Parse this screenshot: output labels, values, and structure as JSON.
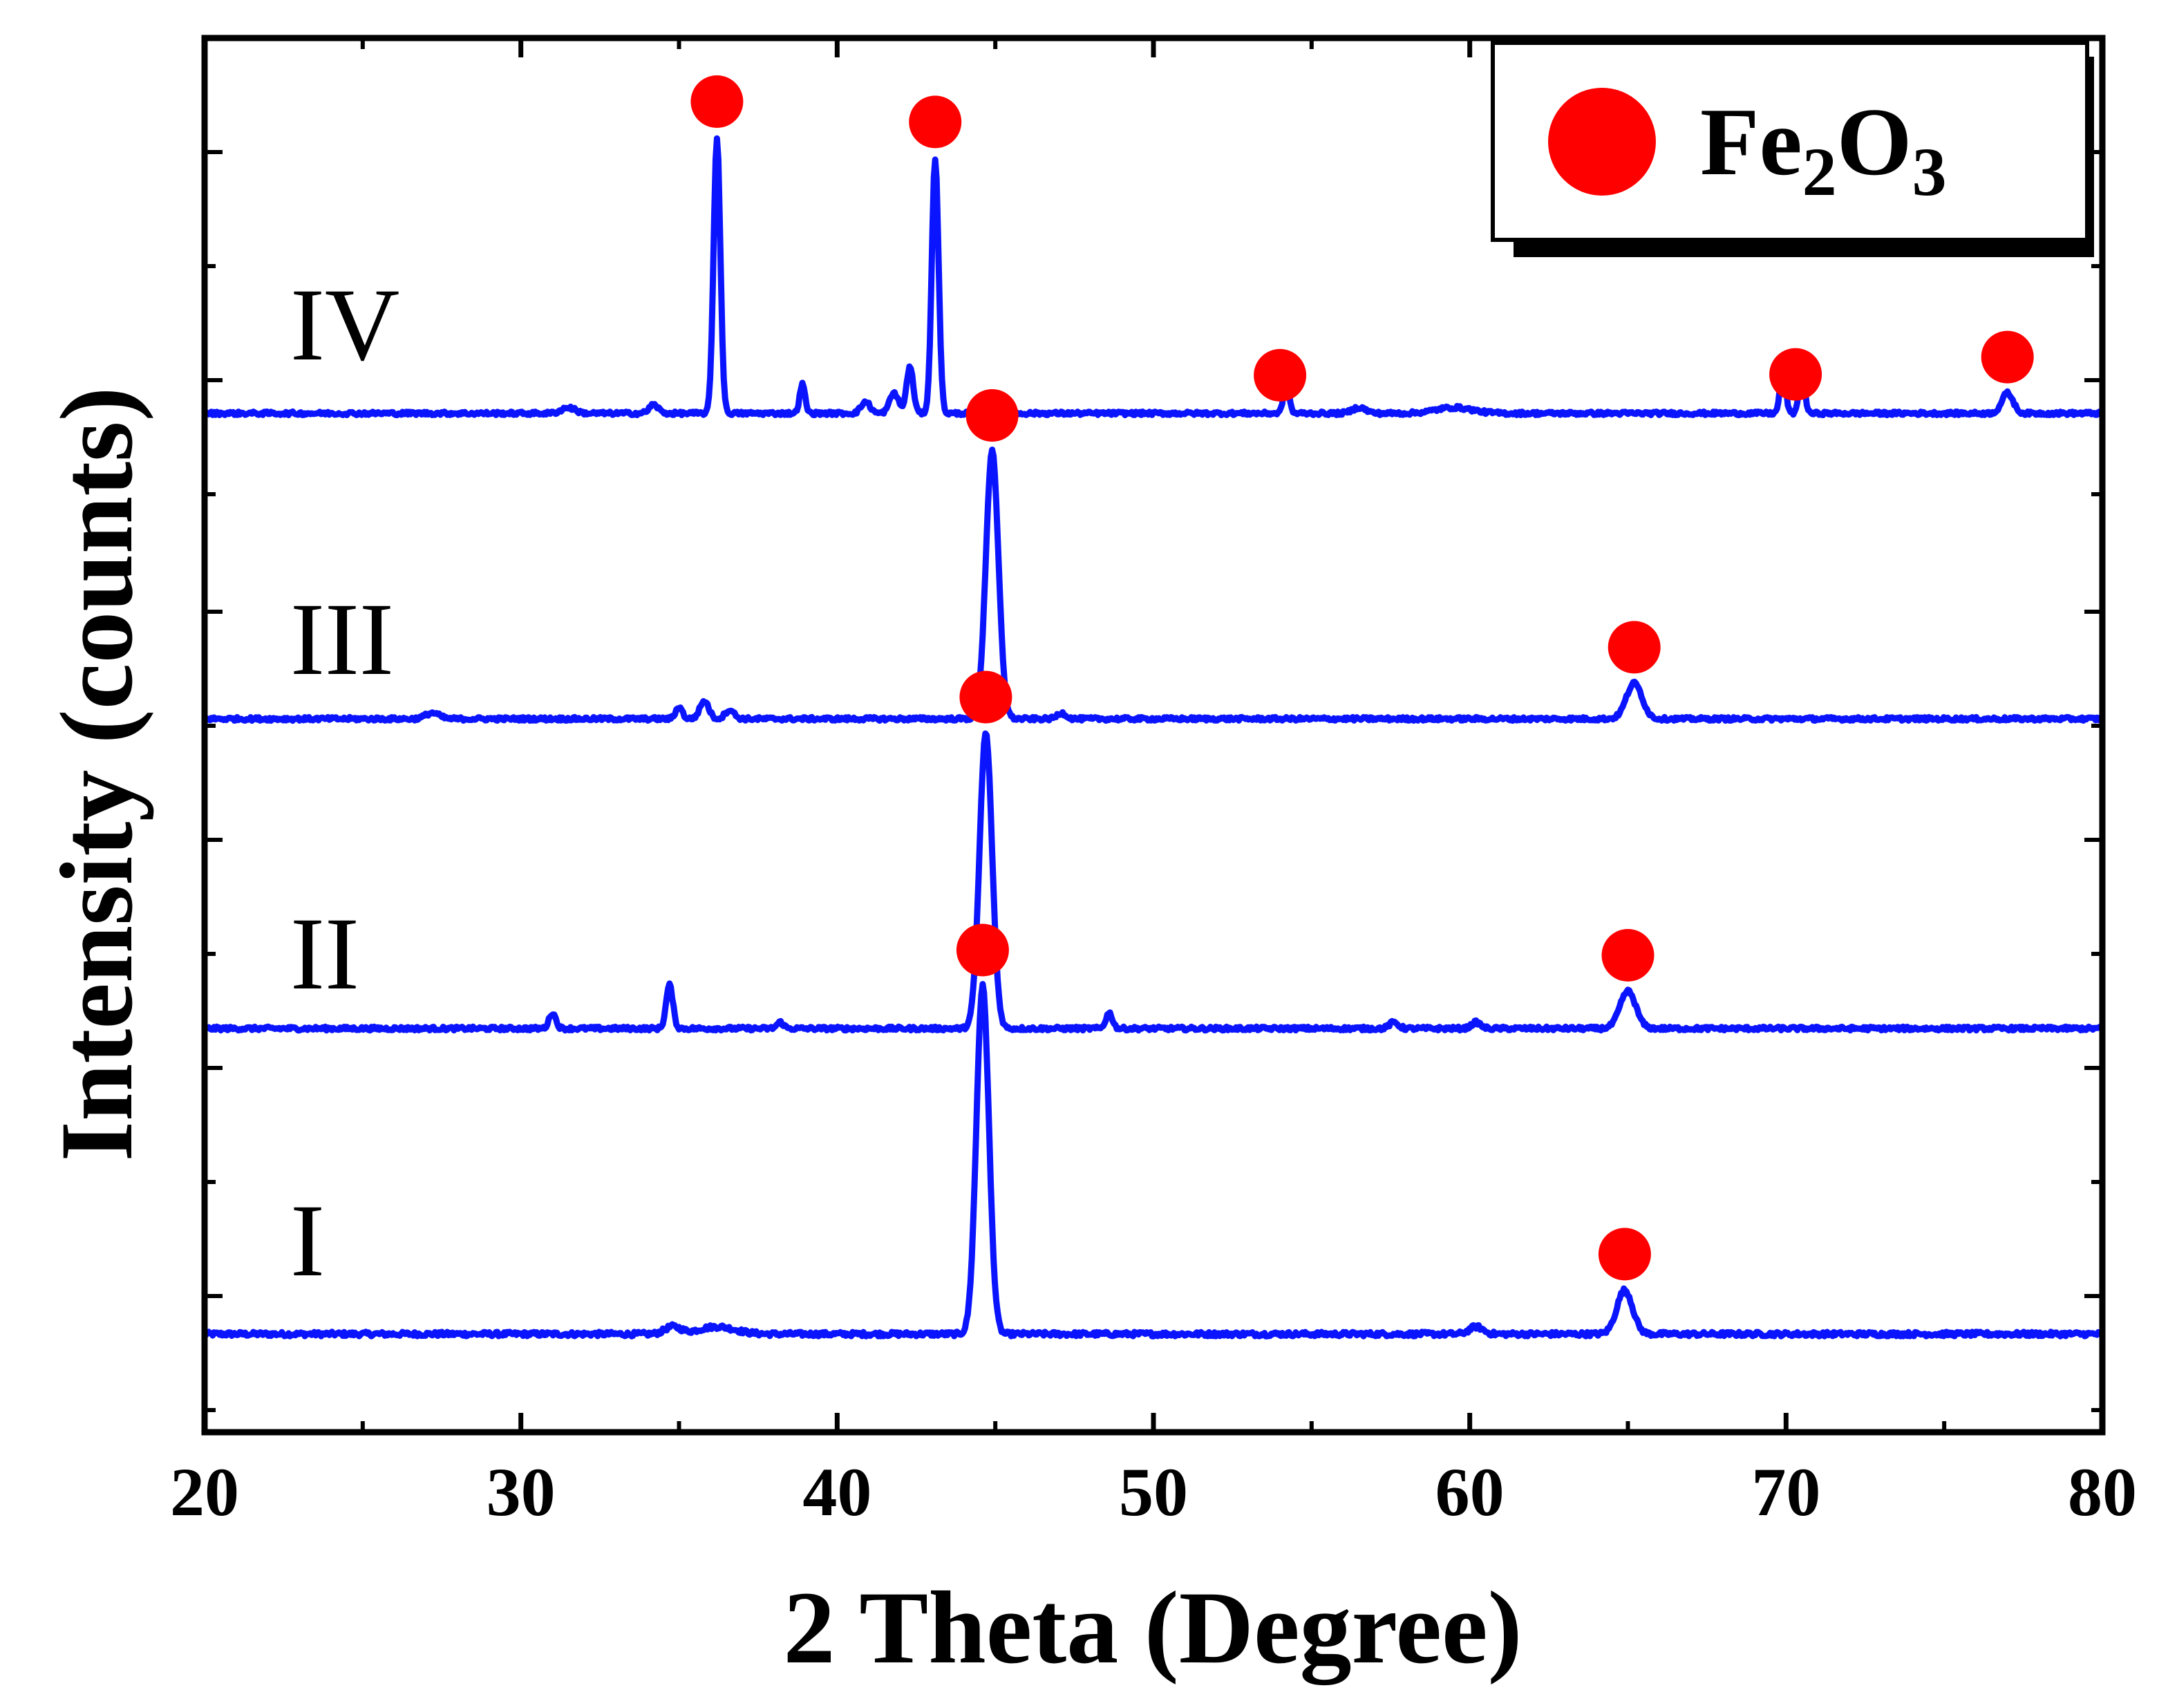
{
  "chart_data": {
    "type": "line",
    "title": "",
    "xlabel": "2 Theta (Degree)",
    "ylabel": "Intensity (counts)",
    "xlim": [
      20,
      80
    ],
    "xticks": [
      20,
      30,
      40,
      50,
      60,
      70,
      80
    ],
    "xtick_labels": [
      "20",
      "30",
      "40",
      "50",
      "60",
      "70",
      "80"
    ],
    "colors": {
      "line": "#0a14ff",
      "marker": "#ff0000",
      "axis": "#000000"
    },
    "legend": {
      "position": "top-right",
      "marker": "red-circle",
      "label_main": "Fe",
      "label_sub1": "2",
      "label_mid": "O",
      "label_sub2": "3"
    },
    "series": [
      {
        "name": "I",
        "baseline": 0.0,
        "noise": 0.012,
        "peaks": [
          {
            "x": 34.8,
            "h": 0.02,
            "w": 0.35
          },
          {
            "x": 36.2,
            "h": 0.02,
            "w": 0.8
          },
          {
            "x": 44.6,
            "h": 0.95,
            "w": 0.28
          },
          {
            "x": 60.2,
            "h": 0.02,
            "w": 0.3
          },
          {
            "x": 64.9,
            "h": 0.12,
            "w": 0.35
          }
        ],
        "markers": [
          44.6,
          64.9
        ]
      },
      {
        "name": "II",
        "baseline": 0.0,
        "noise": 0.012,
        "peaks": [
          {
            "x": 31.0,
            "h": 0.05,
            "w": 0.15
          },
          {
            "x": 34.7,
            "h": 0.14,
            "w": 0.15
          },
          {
            "x": 38.2,
            "h": 0.02,
            "w": 0.15
          },
          {
            "x": 44.7,
            "h": 0.95,
            "w": 0.28
          },
          {
            "x": 48.6,
            "h": 0.05,
            "w": 0.15
          },
          {
            "x": 57.6,
            "h": 0.02,
            "w": 0.2
          },
          {
            "x": 60.2,
            "h": 0.02,
            "w": 0.2
          },
          {
            "x": 65.0,
            "h": 0.12,
            "w": 0.35
          }
        ],
        "markers": [
          44.7,
          65.0
        ]
      },
      {
        "name": "III",
        "baseline": 0.0,
        "noise": 0.012,
        "peaks": [
          {
            "x": 27.2,
            "h": 0.02,
            "w": 0.3
          },
          {
            "x": 35.0,
            "h": 0.04,
            "w": 0.15
          },
          {
            "x": 35.8,
            "h": 0.06,
            "w": 0.2
          },
          {
            "x": 36.6,
            "h": 0.03,
            "w": 0.2
          },
          {
            "x": 44.9,
            "h": 0.9,
            "w": 0.28
          },
          {
            "x": 47.1,
            "h": 0.02,
            "w": 0.2
          },
          {
            "x": 65.2,
            "h": 0.12,
            "w": 0.35
          }
        ],
        "markers": [
          44.9,
          65.2
        ]
      },
      {
        "name": "IV",
        "baseline": 0.0,
        "noise": 0.012,
        "peaks": [
          {
            "x": 31.5,
            "h": 0.02,
            "w": 0.3
          },
          {
            "x": 34.2,
            "h": 0.03,
            "w": 0.2
          },
          {
            "x": 36.2,
            "h": 0.95,
            "w": 0.15
          },
          {
            "x": 38.9,
            "h": 0.1,
            "w": 0.12
          },
          {
            "x": 40.9,
            "h": 0.04,
            "w": 0.2
          },
          {
            "x": 41.8,
            "h": 0.07,
            "w": 0.2
          },
          {
            "x": 42.3,
            "h": 0.16,
            "w": 0.15
          },
          {
            "x": 43.1,
            "h": 0.88,
            "w": 0.15
          },
          {
            "x": 54.2,
            "h": 0.12,
            "w": 0.12
          },
          {
            "x": 56.5,
            "h": 0.02,
            "w": 0.3
          },
          {
            "x": 59.5,
            "h": 0.02,
            "w": 0.8
          },
          {
            "x": 69.9,
            "h": 0.17,
            "w": 0.12
          },
          {
            "x": 70.5,
            "h": 0.17,
            "w": 0.12
          },
          {
            "x": 77.0,
            "h": 0.07,
            "w": 0.25
          }
        ],
        "markers": [
          36.2,
          43.1,
          54.0,
          70.3,
          77.0
        ]
      }
    ]
  }
}
